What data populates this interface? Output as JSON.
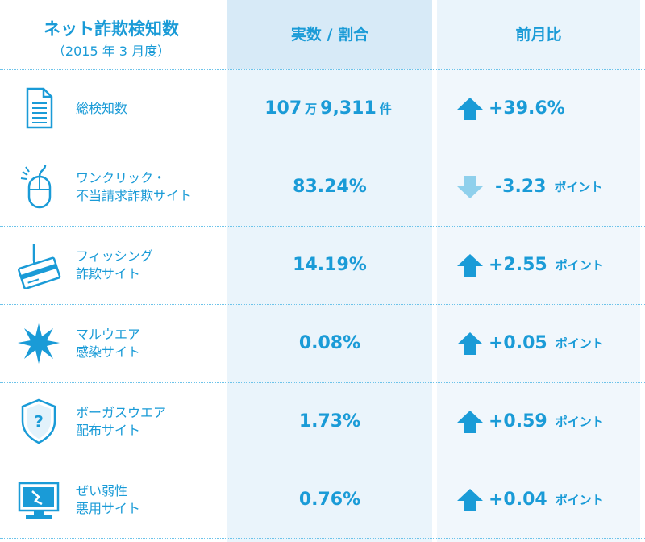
{
  "header": {
    "title": "ネット詐欺検知数",
    "subtitle": "（2015 年 3 月度）",
    "col_value": "実数 / 割合",
    "col_change": "前月比"
  },
  "rows": [
    {
      "label_1": "総検知数",
      "label_2": "",
      "value_a": "107",
      "value_unit_a": "万",
      "value_b": "9,311",
      "value_unit_b": "件",
      "change": "+39.6%",
      "change_unit": "",
      "direction": "up",
      "icon": "document-icon"
    },
    {
      "label_1": "ワンクリック・",
      "label_2": "不当請求詐欺サイト",
      "value": "83.24%",
      "change": "-3.23",
      "change_unit": "ポイント",
      "direction": "down",
      "icon": "mouse-click-icon"
    },
    {
      "label_1": "フィッシング",
      "label_2": "詐欺サイト",
      "value": "14.19%",
      "change": "+2.55",
      "change_unit": "ポイント",
      "direction": "up",
      "icon": "fishing-card-icon"
    },
    {
      "label_1": "マルウエア",
      "label_2": "感染サイト",
      "value": "0.08%",
      "change": "+0.05",
      "change_unit": "ポイント",
      "direction": "up",
      "icon": "malware-burst-icon"
    },
    {
      "label_1": "ボーガスウエア",
      "label_2": "配布サイト",
      "value": "1.73%",
      "change": "+0.59",
      "change_unit": "ポイント",
      "direction": "up",
      "icon": "shield-question-icon"
    },
    {
      "label_1": "ぜい弱性",
      "label_2": "悪用サイト",
      "value": "0.76%",
      "change": "+0.04",
      "change_unit": "ポイント",
      "direction": "up",
      "icon": "broken-monitor-icon"
    }
  ],
  "colors": {
    "accent": "#1a9bd7",
    "up_arrow": "#1a9bd7",
    "down_arrow": "#8fd0ec"
  }
}
